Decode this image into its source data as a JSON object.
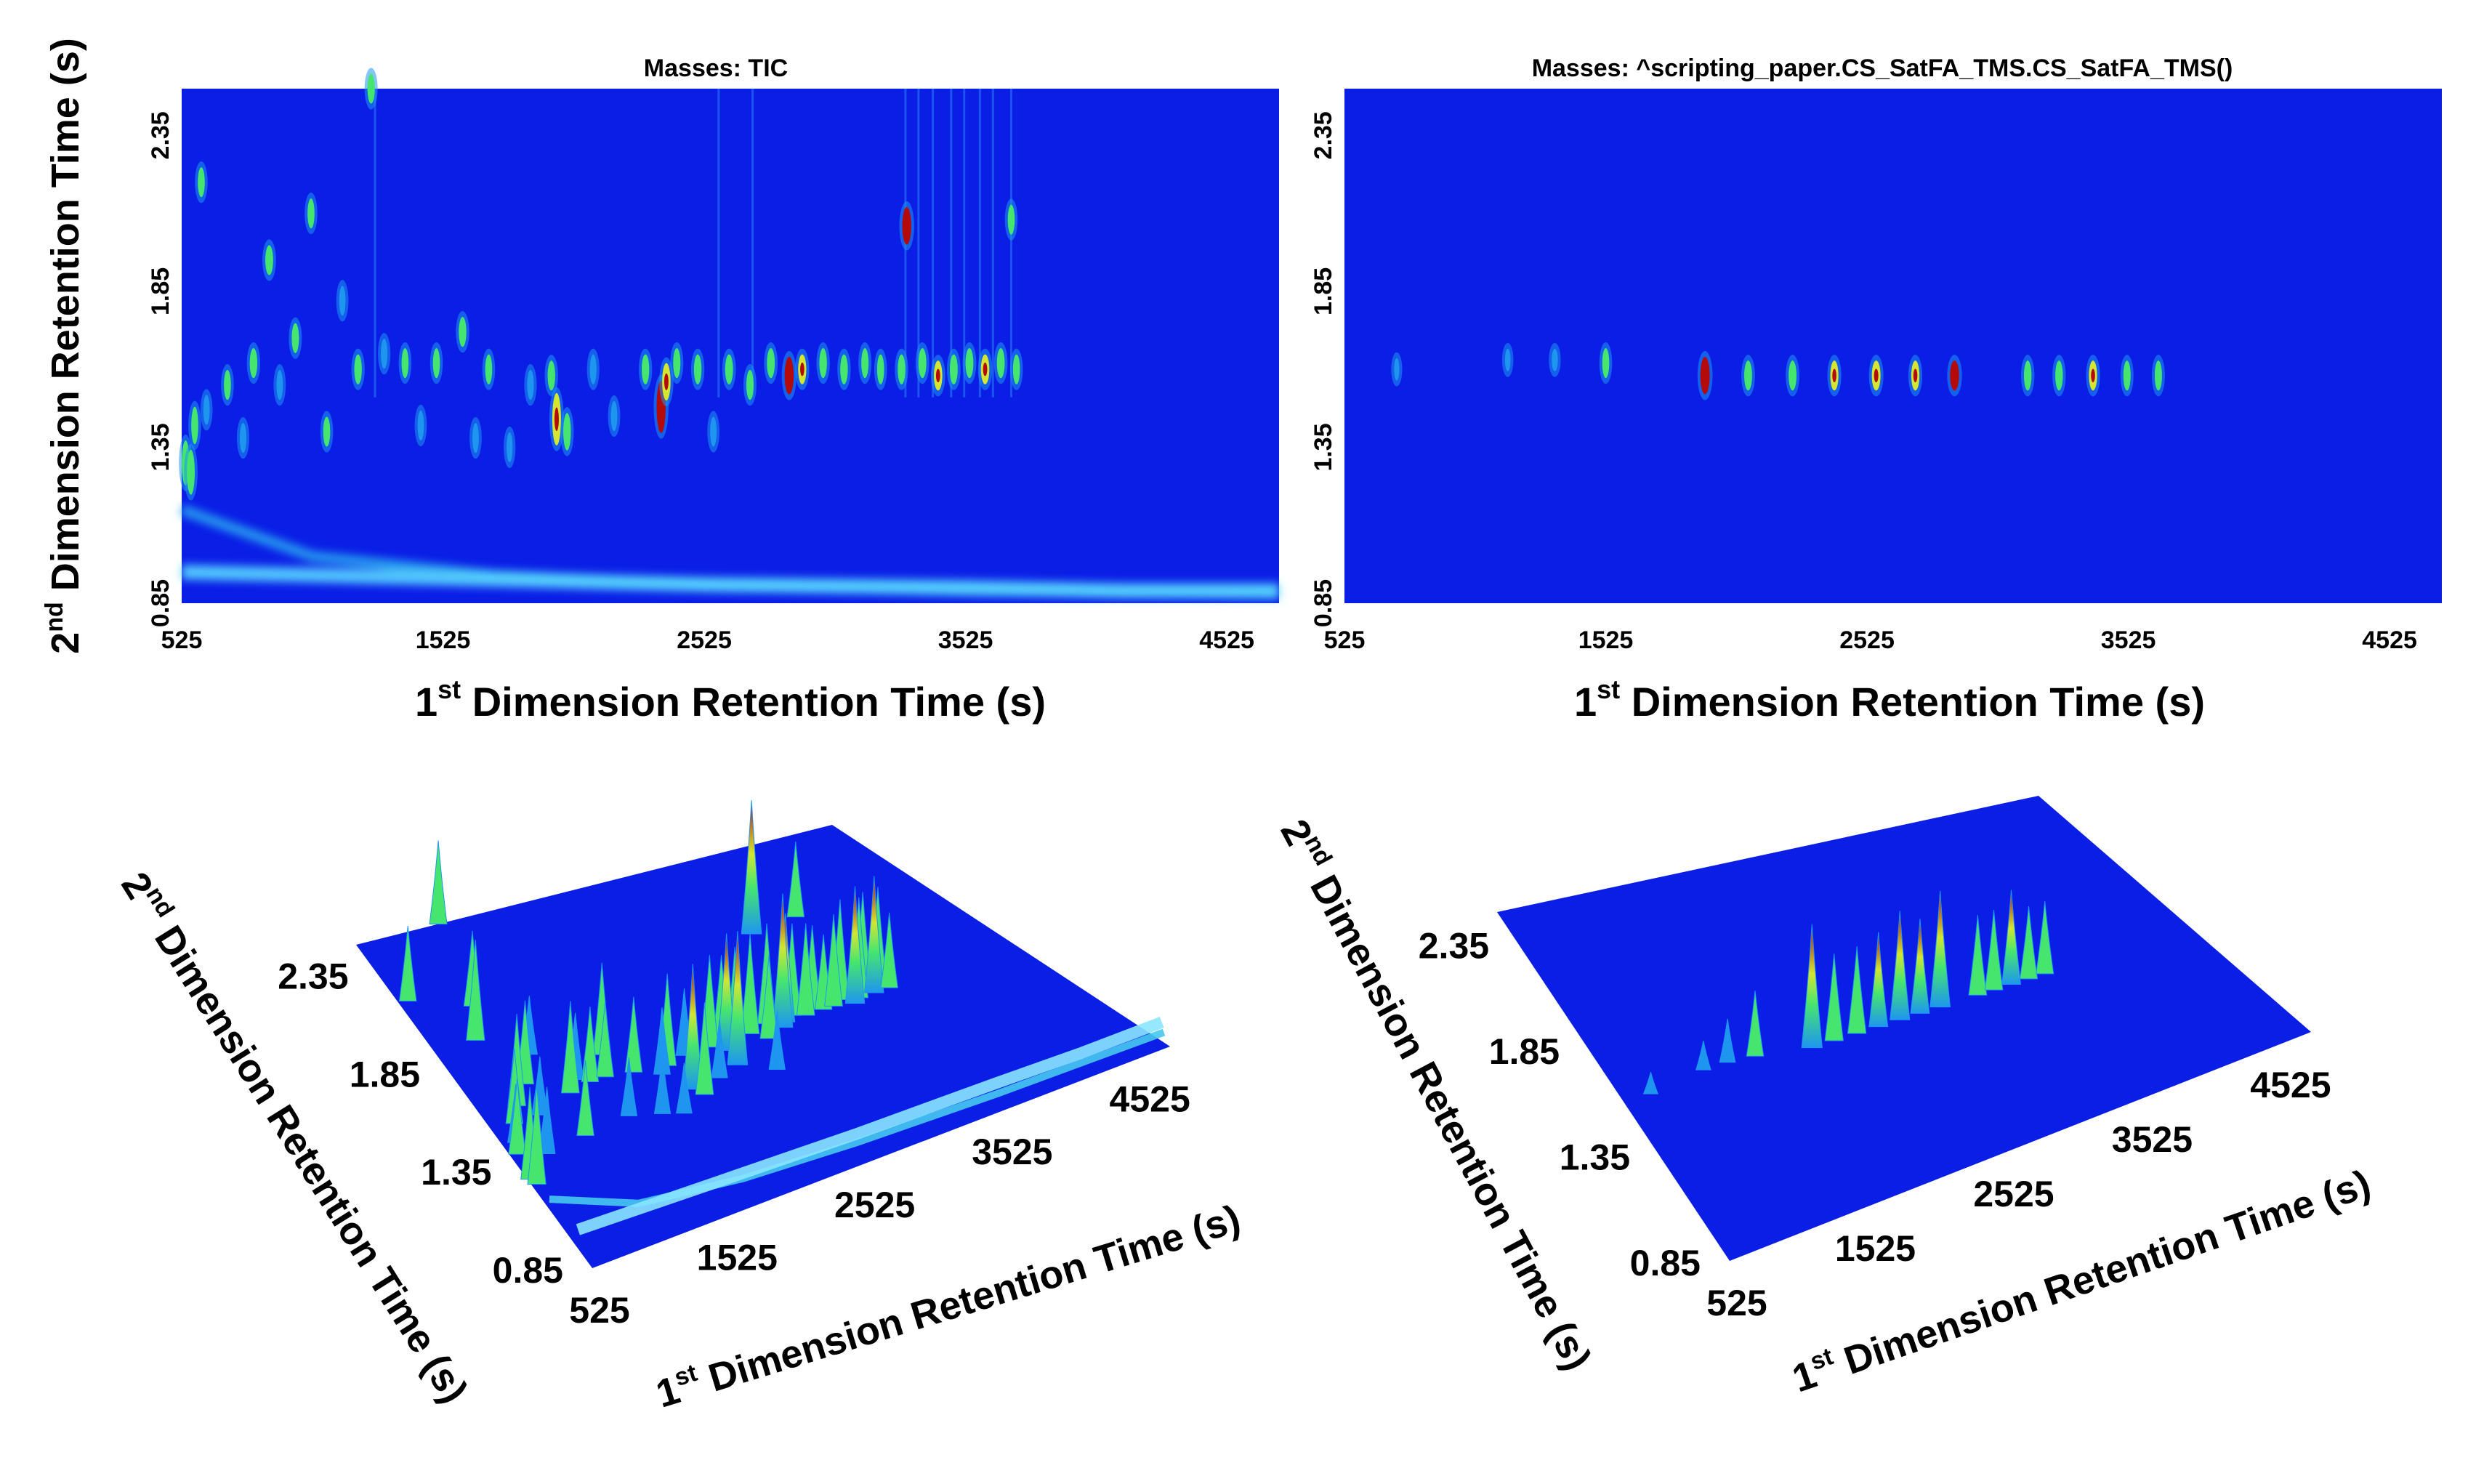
{
  "figure": {
    "background": "#ffffff"
  },
  "colormap": {
    "low": "#0a1ee6",
    "mid1": "#1e96f0",
    "mid2": "#46e66e",
    "mid3": "#d2e632",
    "high": "#b40a0a"
  },
  "chart_data": [
    {
      "type": "heatmap",
      "id": "tic-2d",
      "title": "Masses:  TIC",
      "xlabel_pre": "1",
      "xlabel_sup": "st",
      "xlabel_post": " Dimension Retention Time (s)",
      "ylabel_pre": "2",
      "ylabel_sup": "nd",
      "ylabel_post": " Dimension Retention Time (s)",
      "xlim": [
        525,
        4725
      ],
      "ylim": [
        0.85,
        2.5
      ],
      "xticks": [
        "525",
        "1525",
        "2525",
        "3525",
        "4525"
      ],
      "xtick_values": [
        525,
        1525,
        2525,
        3525,
        4525
      ],
      "yticks": [
        "0.85",
        "1.35",
        "1.85",
        "2.35"
      ],
      "ytick_values": [
        0.85,
        1.35,
        1.85,
        2.35
      ],
      "baseline_curves": [
        {
          "name": "column bleed band",
          "points": [
            [
              525,
              1.15
            ],
            [
              1025,
              1.0
            ],
            [
              1725,
              0.94
            ],
            [
              2525,
              0.91
            ],
            [
              3525,
              0.89
            ],
            [
              4725,
              0.88
            ]
          ]
        },
        {
          "name": "lower bleed band",
          "points": [
            [
              525,
              0.95
            ],
            [
              1525,
              0.93
            ],
            [
              2525,
              0.91
            ],
            [
              3525,
              0.9
            ],
            [
              4125,
              0.89
            ],
            [
              4725,
              0.89
            ]
          ]
        }
      ],
      "peaks": [
        {
          "x": 540,
          "y": 1.3,
          "h": 0.55,
          "w": 0.06
        },
        {
          "x": 560,
          "y": 1.27,
          "h": 0.6,
          "w": 0.06
        },
        {
          "x": 575,
          "y": 1.42,
          "h": 0.45,
          "w": 0.05
        },
        {
          "x": 620,
          "y": 1.47,
          "h": 0.35,
          "w": 0.04
        },
        {
          "x": 600,
          "y": 2.2,
          "h": 0.45,
          "w": 0.04
        },
        {
          "x": 700,
          "y": 1.55,
          "h": 0.45,
          "w": 0.04
        },
        {
          "x": 760,
          "y": 1.38,
          "h": 0.4,
          "w": 0.04
        },
        {
          "x": 800,
          "y": 1.62,
          "h": 0.55,
          "w": 0.04
        },
        {
          "x": 860,
          "y": 1.95,
          "h": 0.6,
          "w": 0.04
        },
        {
          "x": 900,
          "y": 1.55,
          "h": 0.35,
          "w": 0.04
        },
        {
          "x": 960,
          "y": 1.7,
          "h": 0.5,
          "w": 0.04
        },
        {
          "x": 1020,
          "y": 2.1,
          "h": 0.45,
          "w": 0.04
        },
        {
          "x": 1080,
          "y": 1.4,
          "h": 0.45,
          "w": 0.04
        },
        {
          "x": 1140,
          "y": 1.82,
          "h": 0.35,
          "w": 0.04
        },
        {
          "x": 1200,
          "y": 1.6,
          "h": 0.55,
          "w": 0.04
        },
        {
          "x": 1250,
          "y": 2.5,
          "h": 0.5,
          "w": 0.04
        },
        {
          "x": 1300,
          "y": 1.65,
          "h": 0.4,
          "w": 0.04
        },
        {
          "x": 1380,
          "y": 1.62,
          "h": 0.45,
          "w": 0.04
        },
        {
          "x": 1440,
          "y": 1.42,
          "h": 0.35,
          "w": 0.04
        },
        {
          "x": 1500,
          "y": 1.62,
          "h": 0.45,
          "w": 0.04
        },
        {
          "x": 1600,
          "y": 1.72,
          "h": 0.55,
          "w": 0.04
        },
        {
          "x": 1650,
          "y": 1.38,
          "h": 0.35,
          "w": 0.04
        },
        {
          "x": 1700,
          "y": 1.6,
          "h": 0.45,
          "w": 0.04
        },
        {
          "x": 1780,
          "y": 1.35,
          "h": 0.3,
          "w": 0.04
        },
        {
          "x": 1860,
          "y": 1.55,
          "h": 0.4,
          "w": 0.04
        },
        {
          "x": 1940,
          "y": 1.58,
          "h": 0.55,
          "w": 0.04
        },
        {
          "x": 1960,
          "y": 1.44,
          "h": 0.75,
          "w": 0.07
        },
        {
          "x": 2000,
          "y": 1.4,
          "h": 0.55,
          "w": 0.05
        },
        {
          "x": 2100,
          "y": 1.6,
          "h": 0.4,
          "w": 0.04
        },
        {
          "x": 2180,
          "y": 1.45,
          "h": 0.35,
          "w": 0.04
        },
        {
          "x": 2300,
          "y": 1.6,
          "h": 0.55,
          "w": 0.04
        },
        {
          "x": 2360,
          "y": 1.48,
          "h": 0.8,
          "w": 0.07
        },
        {
          "x": 2380,
          "y": 1.56,
          "h": 0.7,
          "w": 0.05
        },
        {
          "x": 2420,
          "y": 1.62,
          "h": 0.5,
          "w": 0.04
        },
        {
          "x": 2500,
          "y": 1.6,
          "h": 0.55,
          "w": 0.04
        },
        {
          "x": 2560,
          "y": 1.4,
          "h": 0.35,
          "w": 0.04
        },
        {
          "x": 2620,
          "y": 1.6,
          "h": 0.6,
          "w": 0.04
        },
        {
          "x": 2700,
          "y": 1.55,
          "h": 0.5,
          "w": 0.04
        },
        {
          "x": 2780,
          "y": 1.62,
          "h": 0.6,
          "w": 0.04
        },
        {
          "x": 2850,
          "y": 1.58,
          "h": 0.8,
          "w": 0.05
        },
        {
          "x": 2900,
          "y": 1.6,
          "h": 0.65,
          "w": 0.04
        },
        {
          "x": 2980,
          "y": 1.62,
          "h": 0.55,
          "w": 0.04
        },
        {
          "x": 3060,
          "y": 1.6,
          "h": 0.55,
          "w": 0.04
        },
        {
          "x": 3140,
          "y": 1.62,
          "h": 0.5,
          "w": 0.04
        },
        {
          "x": 3200,
          "y": 1.6,
          "h": 0.45,
          "w": 0.04
        },
        {
          "x": 3280,
          "y": 1.6,
          "h": 0.55,
          "w": 0.04
        },
        {
          "x": 3300,
          "y": 2.06,
          "h": 0.8,
          "w": 0.05
        },
        {
          "x": 3360,
          "y": 1.62,
          "h": 0.6,
          "w": 0.04
        },
        {
          "x": 3420,
          "y": 1.58,
          "h": 0.7,
          "w": 0.04
        },
        {
          "x": 3480,
          "y": 1.6,
          "h": 0.6,
          "w": 0.04
        },
        {
          "x": 3540,
          "y": 1.62,
          "h": 0.6,
          "w": 0.04
        },
        {
          "x": 3600,
          "y": 1.6,
          "h": 0.7,
          "w": 0.04
        },
        {
          "x": 3660,
          "y": 1.62,
          "h": 0.6,
          "w": 0.04
        },
        {
          "x": 3700,
          "y": 2.08,
          "h": 0.45,
          "w": 0.04
        },
        {
          "x": 3720,
          "y": 1.6,
          "h": 0.45,
          "w": 0.04
        }
      ],
      "streaks_x": [
        1265,
        2580,
        2710,
        3295,
        3345,
        3400,
        3470,
        3520,
        3580,
        3630,
        3700
      ]
    },
    {
      "type": "heatmap",
      "id": "satfa-2d",
      "title": "Masses:  ^scripting_paper.CS_SatFA_TMS.CS_SatFA_TMS()",
      "xlabel_pre": "1",
      "xlabel_sup": "st",
      "xlabel_post": " Dimension Retention Time (s)",
      "xlim": [
        525,
        4725
      ],
      "ylim": [
        0.85,
        2.5
      ],
      "xticks": [
        "525",
        "1525",
        "2525",
        "3525",
        "4525"
      ],
      "xtick_values": [
        525,
        1525,
        2525,
        3525,
        4525
      ],
      "yticks": [
        "0.85",
        "1.35",
        "1.85",
        "2.35"
      ],
      "ytick_values": [
        0.85,
        1.35,
        1.85,
        2.35
      ],
      "peaks": [
        {
          "x": 725,
          "y": 1.6,
          "h": 0.15,
          "w": 0.03
        },
        {
          "x": 1150,
          "y": 1.63,
          "h": 0.2,
          "w": 0.03
        },
        {
          "x": 1330,
          "y": 1.63,
          "h": 0.3,
          "w": 0.03
        },
        {
          "x": 1525,
          "y": 1.62,
          "h": 0.45,
          "w": 0.04
        },
        {
          "x": 1905,
          "y": 1.58,
          "h": 0.85,
          "w": 0.05
        },
        {
          "x": 2070,
          "y": 1.58,
          "h": 0.6,
          "w": 0.04
        },
        {
          "x": 2240,
          "y": 1.58,
          "h": 0.6,
          "w": 0.04
        },
        {
          "x": 2400,
          "y": 1.58,
          "h": 0.65,
          "w": 0.04
        },
        {
          "x": 2560,
          "y": 1.58,
          "h": 0.75,
          "w": 0.04
        },
        {
          "x": 2710,
          "y": 1.58,
          "h": 0.65,
          "w": 0.04
        },
        {
          "x": 2860,
          "y": 1.58,
          "h": 0.8,
          "w": 0.04
        },
        {
          "x": 3140,
          "y": 1.58,
          "h": 0.55,
          "w": 0.04
        },
        {
          "x": 3260,
          "y": 1.58,
          "h": 0.55,
          "w": 0.04
        },
        {
          "x": 3390,
          "y": 1.58,
          "h": 0.65,
          "w": 0.04
        },
        {
          "x": 3520,
          "y": 1.58,
          "h": 0.5,
          "w": 0.04
        },
        {
          "x": 3640,
          "y": 1.58,
          "h": 0.5,
          "w": 0.04
        }
      ]
    },
    {
      "type": "surface",
      "id": "tic-3d",
      "xlabel_pre": "1",
      "xlabel_sup": "st",
      "xlabel_post": " Dimension Retention Time (s)",
      "ylabel_pre": "2",
      "ylabel_sup": "nd",
      "ylabel_post": " Dimension Retention Time (s)",
      "xticks": [
        "525",
        "1525",
        "2525",
        "3525",
        "4525"
      ],
      "xtick_values": [
        525,
        1525,
        2525,
        3525,
        4525
      ],
      "yticks": [
        "0.85",
        "1.35",
        "1.85",
        "2.35"
      ],
      "ytick_values": [
        0.85,
        1.35,
        1.85,
        2.35
      ],
      "xlim": [
        525,
        4725
      ],
      "ylim": [
        0.85,
        2.5
      ]
    },
    {
      "type": "surface",
      "id": "satfa-3d",
      "xlabel_pre": "1",
      "xlabel_sup": "st",
      "xlabel_post": " Dimension Retention Time (s)",
      "ylabel_pre": "2",
      "ylabel_sup": "nd",
      "ylabel_post": " Dimension Retention Time (s)",
      "xticks": [
        "525",
        "1525",
        "2525",
        "3525",
        "4525"
      ],
      "xtick_values": [
        525,
        1525,
        2525,
        3525,
        4525
      ],
      "yticks": [
        "0.85",
        "1.35",
        "1.85",
        "2.35"
      ],
      "ytick_values": [
        0.85,
        1.35,
        1.85,
        2.35
      ],
      "xlim": [
        525,
        4725
      ],
      "ylim": [
        0.85,
        2.5
      ]
    }
  ]
}
